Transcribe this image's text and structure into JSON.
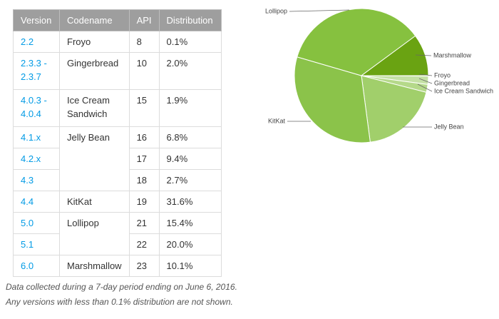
{
  "table": {
    "header": [
      "Version",
      "Codename",
      "API",
      "Distribution"
    ],
    "rows": [
      {
        "version": "2.2",
        "codename": "Froyo",
        "api": "8",
        "distribution": "0.1%"
      },
      {
        "version": "2.3.3 - 2.3.7",
        "codename": "Gingerbread",
        "api": "10",
        "distribution": "2.0%"
      },
      {
        "version": "4.0.3 - 4.0.4",
        "codename": "Ice Cream Sandwich",
        "api": "15",
        "distribution": "1.9%"
      },
      {
        "version": "4.1.x",
        "codename": "Jelly Bean",
        "api": "16",
        "distribution": "6.8%"
      },
      {
        "version": "4.2.x",
        "api": "17",
        "distribution": "9.4%"
      },
      {
        "version": "4.3",
        "api": "18",
        "distribution": "2.7%"
      },
      {
        "version": "4.4",
        "codename": "KitKat",
        "api": "19",
        "distribution": "31.6%"
      },
      {
        "version": "5.0",
        "codename": "Lollipop",
        "api": "21",
        "distribution": "15.4%"
      },
      {
        "version": "5.1",
        "api": "22",
        "distribution": "20.0%"
      },
      {
        "version": "6.0",
        "codename": "Marshmallow",
        "api": "23",
        "distribution": "10.1%"
      }
    ]
  },
  "notes": [
    "Data collected during a 7-day period ending on June 6, 2016.",
    "Any versions with less than 0.1% distribution are not shown."
  ],
  "chart_data": {
    "type": "pie",
    "categories": [
      "Froyo",
      "Gingerbread",
      "Ice Cream Sandwich",
      "Jelly Bean",
      "KitKat",
      "Lollipop",
      "Marshmallow"
    ],
    "values": [
      0.1,
      2.0,
      1.9,
      18.9,
      31.6,
      35.4,
      10.1
    ],
    "colors": [
      "#dcedc8",
      "#c5e1a5",
      "#b5d98a",
      "#a1cf6b",
      "#8bc34a",
      "#86c13f",
      "#6aa312"
    ]
  }
}
